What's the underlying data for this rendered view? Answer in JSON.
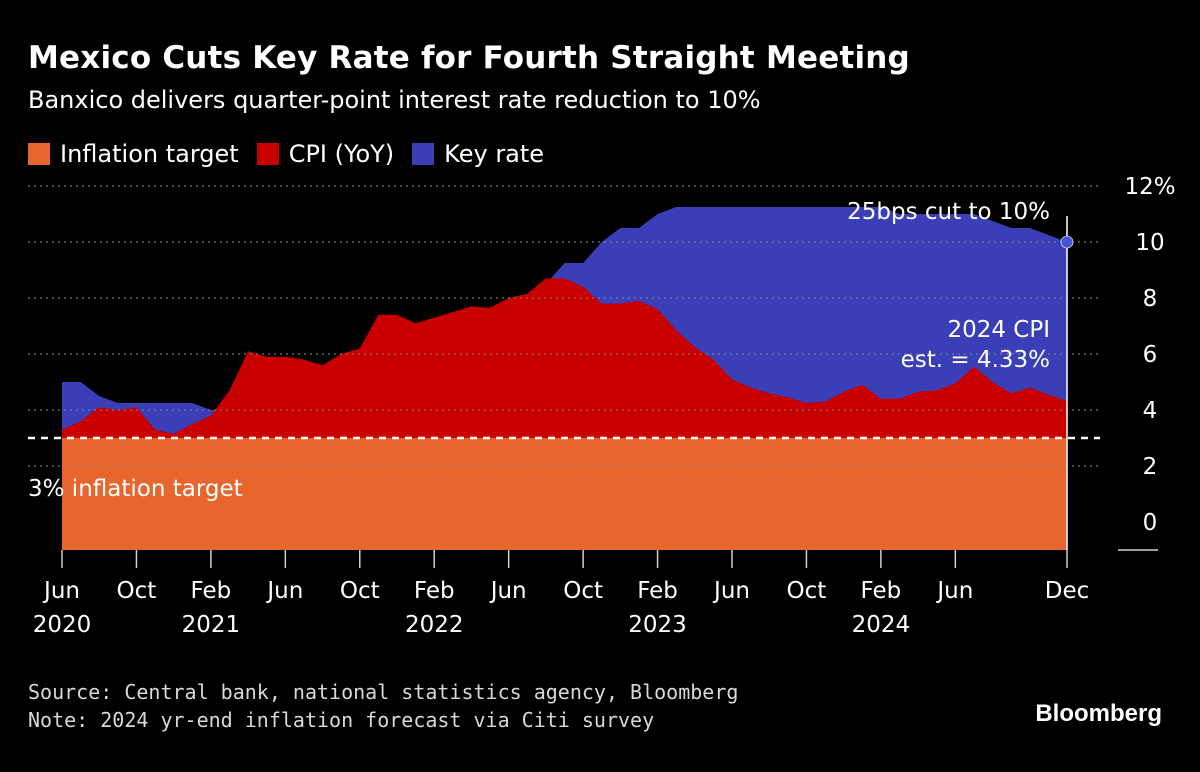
{
  "header": {
    "title": "Mexico Cuts Key Rate for Fourth Straight Meeting",
    "subtitle": "Banxico delivers quarter-point interest rate reduction to 10%"
  },
  "legend": [
    {
      "label": "Inflation target",
      "color": "#E8662E"
    },
    {
      "label": "CPI (YoY)",
      "color": "#C80000"
    },
    {
      "label": "Key rate",
      "color": "#3A3FB8"
    }
  ],
  "footer": {
    "source": "Source: Central bank, national statistics agency, Bloomberg",
    "note": "Note: 2024 yr-end inflation forecast via Citi survey",
    "brand": "Bloomberg"
  },
  "chart_data": {
    "type": "area",
    "title": "Mexico Cuts Key Rate for Fourth Straight Meeting",
    "subtitle": "Banxico delivers quarter-point interest rate reduction to 10%",
    "ylim": [
      -1,
      12
    ],
    "y_unit": "%",
    "y_ticks": [
      0,
      2,
      4,
      6,
      8,
      10,
      12
    ],
    "y_tick_labels": [
      "0",
      "2",
      "4",
      "6",
      "8",
      "10",
      "12%"
    ],
    "x_ticks": [
      {
        "month": "2020-06",
        "label": "Jun",
        "year": "2020"
      },
      {
        "month": "2020-10",
        "label": "Oct",
        "year": ""
      },
      {
        "month": "2021-02",
        "label": "Feb",
        "year": "2021"
      },
      {
        "month": "2021-06",
        "label": "Jun",
        "year": ""
      },
      {
        "month": "2021-10",
        "label": "Oct",
        "year": ""
      },
      {
        "month": "2022-02",
        "label": "Feb",
        "year": "2022"
      },
      {
        "month": "2022-06",
        "label": "Jun",
        "year": ""
      },
      {
        "month": "2022-10",
        "label": "Oct",
        "year": ""
      },
      {
        "month": "2023-02",
        "label": "Feb",
        "year": "2023"
      },
      {
        "month": "2023-06",
        "label": "Jun",
        "year": ""
      },
      {
        "month": "2023-10",
        "label": "Oct",
        "year": ""
      },
      {
        "month": "2024-02",
        "label": "Feb",
        "year": "2024"
      },
      {
        "month": "2024-06",
        "label": "Jun",
        "year": ""
      },
      {
        "month": "2024-12",
        "label": "Dec",
        "year": ""
      }
    ],
    "inflation_target": 3,
    "series": [
      {
        "name": "Key rate",
        "color": "#3A3FB8",
        "points": [
          [
            "2020-06",
            5.0
          ],
          [
            "2020-07",
            5.0
          ],
          [
            "2020-08",
            4.5
          ],
          [
            "2020-09",
            4.25
          ],
          [
            "2020-10",
            4.25
          ],
          [
            "2020-11",
            4.25
          ],
          [
            "2020-12",
            4.25
          ],
          [
            "2021-01",
            4.25
          ],
          [
            "2021-02",
            4.0
          ],
          [
            "2021-03",
            4.0
          ],
          [
            "2021-04",
            4.0
          ],
          [
            "2021-05",
            4.0
          ],
          [
            "2021-06",
            4.25
          ],
          [
            "2021-07",
            4.25
          ],
          [
            "2021-08",
            4.5
          ],
          [
            "2021-09",
            4.75
          ],
          [
            "2021-10",
            4.75
          ],
          [
            "2021-11",
            5.0
          ],
          [
            "2021-12",
            5.5
          ],
          [
            "2022-01",
            5.5
          ],
          [
            "2022-02",
            6.0
          ],
          [
            "2022-03",
            6.5
          ],
          [
            "2022-04",
            6.5
          ],
          [
            "2022-05",
            7.0
          ],
          [
            "2022-06",
            7.75
          ],
          [
            "2022-07",
            7.75
          ],
          [
            "2022-08",
            8.5
          ],
          [
            "2022-09",
            9.25
          ],
          [
            "2022-10",
            9.25
          ],
          [
            "2022-11",
            10.0
          ],
          [
            "2022-12",
            10.5
          ],
          [
            "2023-01",
            10.5
          ],
          [
            "2023-02",
            11.0
          ],
          [
            "2023-03",
            11.25
          ],
          [
            "2023-04",
            11.25
          ],
          [
            "2023-05",
            11.25
          ],
          [
            "2023-06",
            11.25
          ],
          [
            "2023-07",
            11.25
          ],
          [
            "2023-08",
            11.25
          ],
          [
            "2023-09",
            11.25
          ],
          [
            "2023-10",
            11.25
          ],
          [
            "2023-11",
            11.25
          ],
          [
            "2023-12",
            11.25
          ],
          [
            "2024-01",
            11.25
          ],
          [
            "2024-02",
            11.25
          ],
          [
            "2024-03",
            11.0
          ],
          [
            "2024-04",
            11.0
          ],
          [
            "2024-05",
            11.0
          ],
          [
            "2024-06",
            11.0
          ],
          [
            "2024-07",
            11.0
          ],
          [
            "2024-08",
            10.75
          ],
          [
            "2024-09",
            10.5
          ],
          [
            "2024-10",
            10.5
          ],
          [
            "2024-11",
            10.25
          ],
          [
            "2024-12",
            10.0
          ]
        ]
      },
      {
        "name": "CPI (YoY)",
        "color": "#C80000",
        "points": [
          [
            "2020-06",
            3.3
          ],
          [
            "2020-07",
            3.6
          ],
          [
            "2020-08",
            4.1
          ],
          [
            "2020-09",
            4.0
          ],
          [
            "2020-10",
            4.1
          ],
          [
            "2020-11",
            3.3
          ],
          [
            "2020-12",
            3.15
          ],
          [
            "2021-01",
            3.5
          ],
          [
            "2021-02",
            3.8
          ],
          [
            "2021-03",
            4.7
          ],
          [
            "2021-04",
            6.1
          ],
          [
            "2021-05",
            5.9
          ],
          [
            "2021-06",
            5.9
          ],
          [
            "2021-07",
            5.8
          ],
          [
            "2021-08",
            5.6
          ],
          [
            "2021-09",
            6.0
          ],
          [
            "2021-10",
            6.2
          ],
          [
            "2021-11",
            7.4
          ],
          [
            "2021-12",
            7.4
          ],
          [
            "2022-01",
            7.1
          ],
          [
            "2022-02",
            7.3
          ],
          [
            "2022-03",
            7.5
          ],
          [
            "2022-04",
            7.7
          ],
          [
            "2022-05",
            7.65
          ],
          [
            "2022-06",
            8.0
          ],
          [
            "2022-07",
            8.15
          ],
          [
            "2022-08",
            8.7
          ],
          [
            "2022-09",
            8.7
          ],
          [
            "2022-10",
            8.4
          ],
          [
            "2022-11",
            7.8
          ],
          [
            "2022-12",
            7.8
          ],
          [
            "2023-01",
            7.9
          ],
          [
            "2023-02",
            7.6
          ],
          [
            "2023-03",
            6.85
          ],
          [
            "2023-04",
            6.25
          ],
          [
            "2023-05",
            5.8
          ],
          [
            "2023-06",
            5.1
          ],
          [
            "2023-07",
            4.8
          ],
          [
            "2023-08",
            4.6
          ],
          [
            "2023-09",
            4.45
          ],
          [
            "2023-10",
            4.25
          ],
          [
            "2023-11",
            4.3
          ],
          [
            "2023-12",
            4.65
          ],
          [
            "2024-01",
            4.9
          ],
          [
            "2024-02",
            4.4
          ],
          [
            "2024-03",
            4.4
          ],
          [
            "2024-04",
            4.65
          ],
          [
            "2024-05",
            4.7
          ],
          [
            "2024-06",
            4.95
          ],
          [
            "2024-07",
            5.55
          ],
          [
            "2024-08",
            5.0
          ],
          [
            "2024-09",
            4.6
          ],
          [
            "2024-10",
            4.8
          ],
          [
            "2024-11",
            4.55
          ],
          [
            "2024-12",
            4.33
          ]
        ]
      }
    ],
    "annotations": {
      "target_line": "3% inflation target",
      "cut_label": "25bps cut to 10%",
      "cpi_est_line1": "2024 CPI",
      "cpi_est_line2": "est. = 4.33%"
    }
  }
}
